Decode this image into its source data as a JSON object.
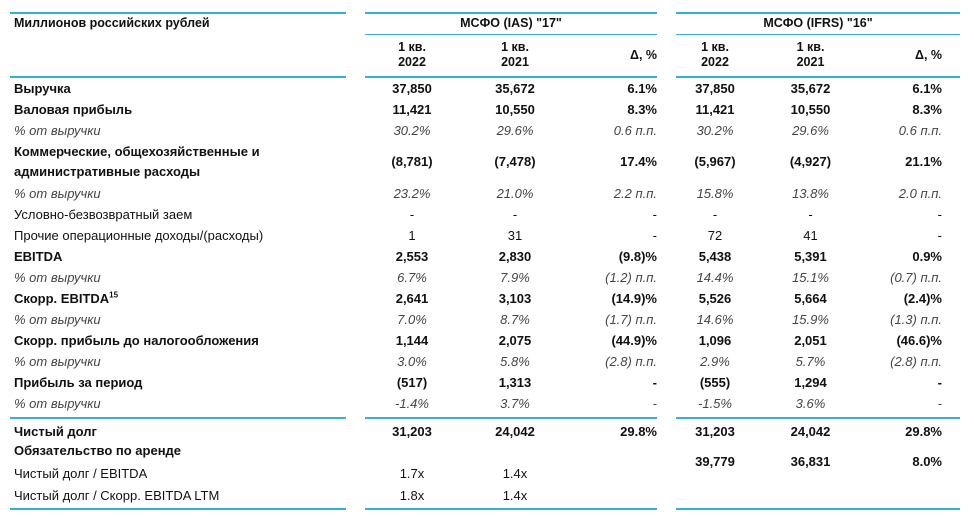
{
  "header": {
    "units": "Миллионов российских рублей",
    "group1": "МСФО (IAS) \"17\"",
    "group2": "МСФО (IFRS) \"16\"",
    "col_q1_line1": "1 кв.",
    "col_2022": "2022",
    "col_2021": "2021",
    "col_delta": "Δ, %"
  },
  "rows": [
    {
      "label": "Выручка",
      "v": [
        "37,850",
        "35,672",
        "6.1%",
        "37,850",
        "35,672",
        "6.1%"
      ]
    },
    {
      "label": "Валовая прибыль",
      "v": [
        "11,421",
        "10,550",
        "8.3%",
        "11,421",
        "10,550",
        "8.3%"
      ]
    },
    {
      "label": "% от выручки",
      "v": [
        "30.2%",
        "29.6%",
        "0.6 п.п.",
        "30.2%",
        "29.6%",
        "0.6 п.п."
      ]
    },
    {
      "label1": "Коммерческие, общехозяйственные и",
      "label2": "административные расходы",
      "v": [
        "(8,781)",
        "(7,478)",
        "17.4%",
        "(5,967)",
        "(4,927)",
        "21.1%"
      ]
    },
    {
      "label": "% от выручки",
      "v": [
        "23.2%",
        "21.0%",
        "2.2 п.п.",
        "15.8%",
        "13.8%",
        "2.0 п.п."
      ]
    },
    {
      "label": "Условно-безвозвратный заем",
      "v": [
        "-",
        "-",
        "-",
        "-",
        "-",
        "-"
      ]
    },
    {
      "label": "Прочие операционные доходы/(расходы)",
      "v": [
        "1",
        "31",
        "-",
        "72",
        "41",
        "-"
      ]
    },
    {
      "label": "EBITDA",
      "v": [
        "2,553",
        "2,830",
        "(9.8)%",
        "5,438",
        "5,391",
        "0.9%"
      ]
    },
    {
      "label": "% от выручки",
      "v": [
        "6.7%",
        "7.9%",
        "(1.2) п.п.",
        "14.4%",
        "15.1%",
        "(0.7) п.п."
      ]
    },
    {
      "label": "Скорр. EBITDA",
      "sup": "15",
      "v": [
        "2,641",
        "3,103",
        "(14.9)%",
        "5,526",
        "5,664",
        "(2.4)%"
      ]
    },
    {
      "label": "% от выручки",
      "v": [
        "7.0%",
        "8.7%",
        "(1.7) п.п.",
        "14.6%",
        "15.9%",
        "(1.3) п.п."
      ]
    },
    {
      "label": "Скорр. прибыль до налогообложения",
      "v": [
        "1,144",
        "2,075",
        "(44.9)%",
        "1,096",
        "2,051",
        "(46.6)%"
      ]
    },
    {
      "label": "% от выручки",
      "v": [
        "3.0%",
        "5.8%",
        "(2.8) п.п.",
        "2.9%",
        "5.7%",
        "(2.8) п.п."
      ]
    },
    {
      "label": "Прибыль за период",
      "v": [
        "(517)",
        "1,313",
        "-",
        "(555)",
        "1,294",
        "-"
      ]
    },
    {
      "label": "% от выручки",
      "v": [
        "-1.4%",
        "3.7%",
        "-",
        "-1.5%",
        "3.6%",
        "-"
      ]
    },
    {
      "label": "Чистый долг",
      "v": [
        "31,203",
        "24,042",
        "29.8%",
        "31,203",
        "24,042",
        "29.8%"
      ]
    },
    {
      "label": "Обязательство по аренде",
      "v": [
        "",
        "",
        "",
        "39,779",
        "36,831",
        "8.0%"
      ]
    },
    {
      "label": "Чистый долг / EBITDA",
      "v": [
        "1.7x",
        "1.4x",
        "",
        "",
        "",
        ""
      ]
    },
    {
      "label": "Чистый долг / Скорр. EBITDA LTM",
      "v": [
        "1.8x",
        "1.4x",
        "",
        "",
        "",
        ""
      ]
    }
  ]
}
